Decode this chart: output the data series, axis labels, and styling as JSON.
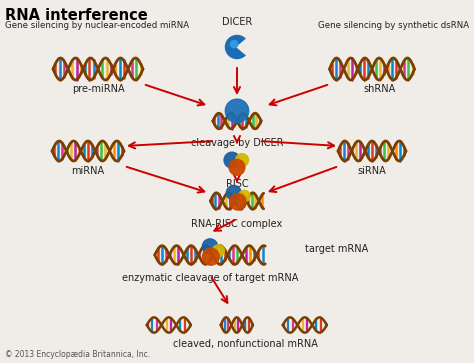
{
  "title": "RNA interference",
  "bg_color": "#f0ede8",
  "labels": {
    "subtitle_left": "Gene silencing by nuclear-encoded miRNA",
    "subtitle_right": "Gene silencing by synthetic dsRNA",
    "dicer": "DICER",
    "pre_mirna": "pre-miRNA",
    "shrna": "shRNA",
    "cleavage_dicer": "cleavage by DICER",
    "mirna": "miRNA",
    "sirna": "siRNA",
    "risc": "RISC",
    "rna_risc": "RNA-RISC complex",
    "target_mrna": "target mRNA",
    "enzymatic": "enzymatic cleavage of target mRNA",
    "cleaved": "cleaved, nonfunctional mRNA",
    "copyright": "© 2013 Encyclopædia Britannica, Inc."
  },
  "arrow_color": "#cc0000",
  "text_color": "#222222",
  "title_color": "#000000"
}
